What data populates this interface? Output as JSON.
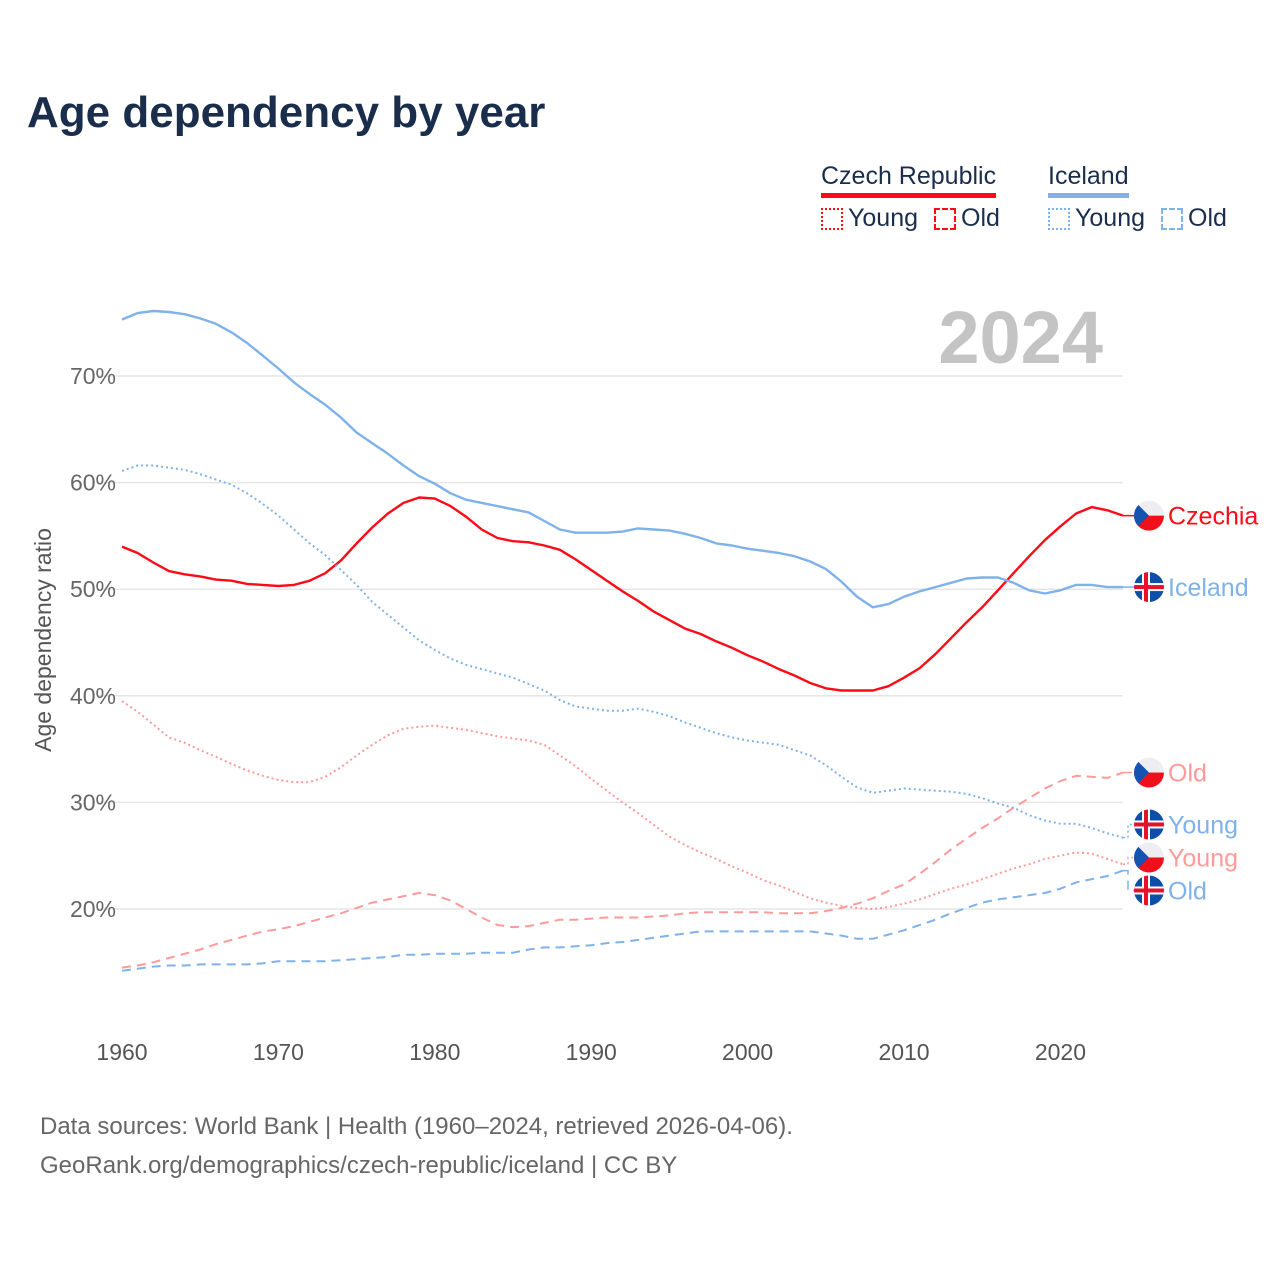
{
  "title": "Age dependency by year",
  "legend": {
    "groups": [
      {
        "name": "Czech Republic",
        "color": "#ff0a17",
        "items": [
          {
            "label": "Young",
            "style": "dotted"
          },
          {
            "label": "Old",
            "style": "dashed"
          }
        ]
      },
      {
        "name": "Iceland",
        "color": "#7fb2ea",
        "items": [
          {
            "label": "Young",
            "style": "dotted"
          },
          {
            "label": "Old",
            "style": "dashed"
          }
        ]
      }
    ]
  },
  "year_watermark": "2024",
  "footer": {
    "line1": "Data sources: World Bank | Health (1960–2024, retrieved 2026-04-06).",
    "line2": "GeoRank.org/demographics/czech-republic/iceland | CC BY"
  },
  "chart_data": {
    "type": "line",
    "title": "Age dependency by year",
    "xlabel": "",
    "ylabel": "Age dependency ratio",
    "xlim": [
      1960,
      2024
    ],
    "ylim": [
      10,
      78
    ],
    "x_ticks": [
      1960,
      1970,
      1980,
      1990,
      2000,
      2010,
      2020
    ],
    "y_ticks": [
      20,
      30,
      40,
      50,
      60,
      70
    ],
    "y_tick_labels": [
      "20%",
      "30%",
      "40%",
      "50%",
      "60%",
      "70%"
    ],
    "grid": true,
    "series": [
      {
        "name": "Czechia",
        "label": "Czechia",
        "country": "cz",
        "style": "solid",
        "color": "#ff0a17",
        "values": [
          54.0,
          53.4,
          52.5,
          51.7,
          51.4,
          51.2,
          50.9,
          50.8,
          50.5,
          50.4,
          50.3,
          50.4,
          50.8,
          51.5,
          52.7,
          54.3,
          55.8,
          57.1,
          58.1,
          58.6,
          58.5,
          57.8,
          56.8,
          55.6,
          54.8,
          54.5,
          54.4,
          54.1,
          53.7,
          52.8,
          51.8,
          50.8,
          49.8,
          48.9,
          47.9,
          47.1,
          46.3,
          45.8,
          45.1,
          44.5,
          43.8,
          43.2,
          42.5,
          41.9,
          41.2,
          40.7,
          40.5,
          40.5,
          40.5,
          40.9,
          41.7,
          42.6,
          43.9,
          45.4,
          46.9,
          48.3,
          49.9,
          51.5,
          53.1,
          54.6,
          55.9,
          57.1,
          57.7,
          57.4,
          56.9
        ]
      },
      {
        "name": "Iceland",
        "label": "Iceland",
        "country": "is",
        "style": "solid",
        "color": "#7fb2ea",
        "values": [
          75.3,
          75.9,
          76.1,
          76.0,
          75.8,
          75.4,
          74.9,
          74.1,
          73.1,
          71.9,
          70.7,
          69.4,
          68.3,
          67.3,
          66.1,
          64.7,
          63.7,
          62.7,
          61.6,
          60.6,
          59.9,
          59.0,
          58.4,
          58.1,
          57.8,
          57.5,
          57.2,
          56.4,
          55.6,
          55.3,
          55.3,
          55.3,
          55.4,
          55.7,
          55.6,
          55.5,
          55.2,
          54.8,
          54.3,
          54.1,
          53.8,
          53.6,
          53.4,
          53.1,
          52.6,
          51.9,
          50.7,
          49.3,
          48.3,
          48.6,
          49.3,
          49.8,
          50.2,
          50.6,
          51.0,
          51.1,
          51.1,
          50.6,
          49.9,
          49.6,
          49.9,
          50.4,
          50.4,
          50.2,
          50.2
        ]
      },
      {
        "name": "Czechia Young",
        "label": "Young",
        "country": "cz",
        "style": "dotted",
        "color": "#ff9a9a",
        "values": [
          39.5,
          38.5,
          37.3,
          36.1,
          35.6,
          34.9,
          34.3,
          33.6,
          33.0,
          32.5,
          32.1,
          31.9,
          31.9,
          32.4,
          33.3,
          34.4,
          35.4,
          36.3,
          36.9,
          37.1,
          37.2,
          37.0,
          36.8,
          36.5,
          36.2,
          36.0,
          35.8,
          35.4,
          34.4,
          33.4,
          32.2,
          31.1,
          30.0,
          29.0,
          27.9,
          26.8,
          26.0,
          25.3,
          24.7,
          24.0,
          23.4,
          22.7,
          22.2,
          21.6,
          21.0,
          20.6,
          20.3,
          20.1,
          20.0,
          20.2,
          20.5,
          20.9,
          21.4,
          21.9,
          22.3,
          22.8,
          23.3,
          23.8,
          24.2,
          24.7,
          25.0,
          25.3,
          25.2,
          24.7,
          24.2
        ]
      },
      {
        "name": "Czechia Old",
        "label": "Old",
        "country": "cz",
        "style": "dashed",
        "color": "#ff9a9a",
        "values": [
          14.5,
          14.7,
          15.0,
          15.4,
          15.8,
          16.2,
          16.7,
          17.1,
          17.5,
          17.9,
          18.1,
          18.4,
          18.8,
          19.2,
          19.6,
          20.1,
          20.6,
          20.9,
          21.2,
          21.5,
          21.3,
          20.8,
          20.0,
          19.2,
          18.5,
          18.3,
          18.4,
          18.7,
          19.0,
          19.0,
          19.1,
          19.2,
          19.2,
          19.2,
          19.3,
          19.4,
          19.6,
          19.7,
          19.7,
          19.7,
          19.7,
          19.7,
          19.6,
          19.6,
          19.6,
          19.8,
          20.1,
          20.5,
          21.0,
          21.7,
          22.3,
          23.3,
          24.4,
          25.6,
          26.6,
          27.6,
          28.5,
          29.5,
          30.4,
          31.3,
          32.0,
          32.5,
          32.4,
          32.3,
          32.8
        ]
      },
      {
        "name": "Iceland Young",
        "label": "Young",
        "country": "is",
        "style": "dotted",
        "color": "#7fb2ea",
        "values": [
          61.1,
          61.6,
          61.6,
          61.4,
          61.2,
          60.8,
          60.3,
          59.8,
          59.0,
          58.0,
          56.9,
          55.6,
          54.3,
          53.2,
          51.8,
          50.4,
          48.8,
          47.6,
          46.4,
          45.2,
          44.3,
          43.5,
          42.9,
          42.5,
          42.1,
          41.7,
          41.1,
          40.5,
          39.6,
          39.0,
          38.8,
          38.6,
          38.6,
          38.8,
          38.5,
          38.1,
          37.5,
          37.0,
          36.5,
          36.1,
          35.8,
          35.6,
          35.4,
          34.9,
          34.4,
          33.5,
          32.4,
          31.4,
          30.9,
          31.1,
          31.3,
          31.2,
          31.1,
          31.0,
          30.8,
          30.4,
          29.9,
          29.5,
          28.8,
          28.3,
          28.0,
          28.0,
          27.6,
          27.1,
          26.7
        ]
      },
      {
        "name": "Iceland Old",
        "label": "Old",
        "country": "is",
        "style": "dashed",
        "color": "#7fb2ea",
        "values": [
          14.2,
          14.4,
          14.6,
          14.7,
          14.7,
          14.8,
          14.8,
          14.8,
          14.8,
          14.9,
          15.1,
          15.1,
          15.1,
          15.1,
          15.2,
          15.3,
          15.4,
          15.5,
          15.7,
          15.7,
          15.8,
          15.8,
          15.8,
          15.9,
          15.9,
          15.9,
          16.2,
          16.4,
          16.4,
          16.5,
          16.6,
          16.8,
          16.9,
          17.1,
          17.3,
          17.5,
          17.7,
          17.9,
          17.9,
          17.9,
          17.9,
          17.9,
          17.9,
          17.9,
          17.9,
          17.7,
          17.5,
          17.2,
          17.2,
          17.6,
          18.0,
          18.5,
          19.0,
          19.6,
          20.1,
          20.6,
          20.9,
          21.1,
          21.3,
          21.5,
          21.9,
          22.5,
          22.8,
          23.1,
          23.6
        ]
      }
    ]
  }
}
